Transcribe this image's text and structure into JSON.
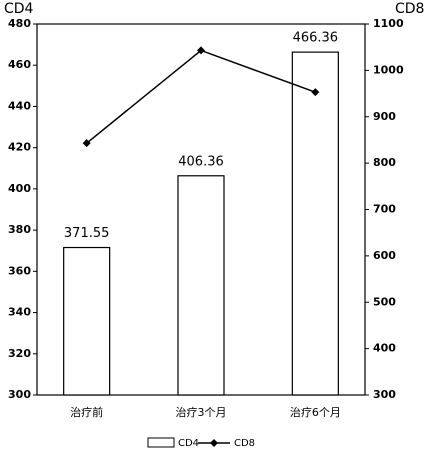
{
  "chart_data": {
    "type": "bar",
    "categories": [
      "治疗前",
      "治疗3个月",
      "治疗6个月"
    ],
    "y_label": "CD4",
    "y2_label": "CD8",
    "ylim": [
      300,
      480
    ],
    "yticks": [
      300,
      320,
      340,
      360,
      380,
      400,
      420,
      440,
      460,
      480
    ],
    "y2lim": [
      300,
      1100
    ],
    "y2ticks": [
      300,
      400,
      500,
      600,
      700,
      800,
      900,
      1000,
      1100
    ],
    "series": [
      {
        "name": "CD4",
        "type": "bar",
        "color": "#ffffff",
        "values": [
          371.55,
          406.36,
          466.36
        ],
        "show_value_labels": true
      },
      {
        "name": "CD8",
        "type": "line",
        "axis": "y2",
        "color": "#000000",
        "values": [
          843,
          1043,
          953
        ]
      }
    ]
  }
}
